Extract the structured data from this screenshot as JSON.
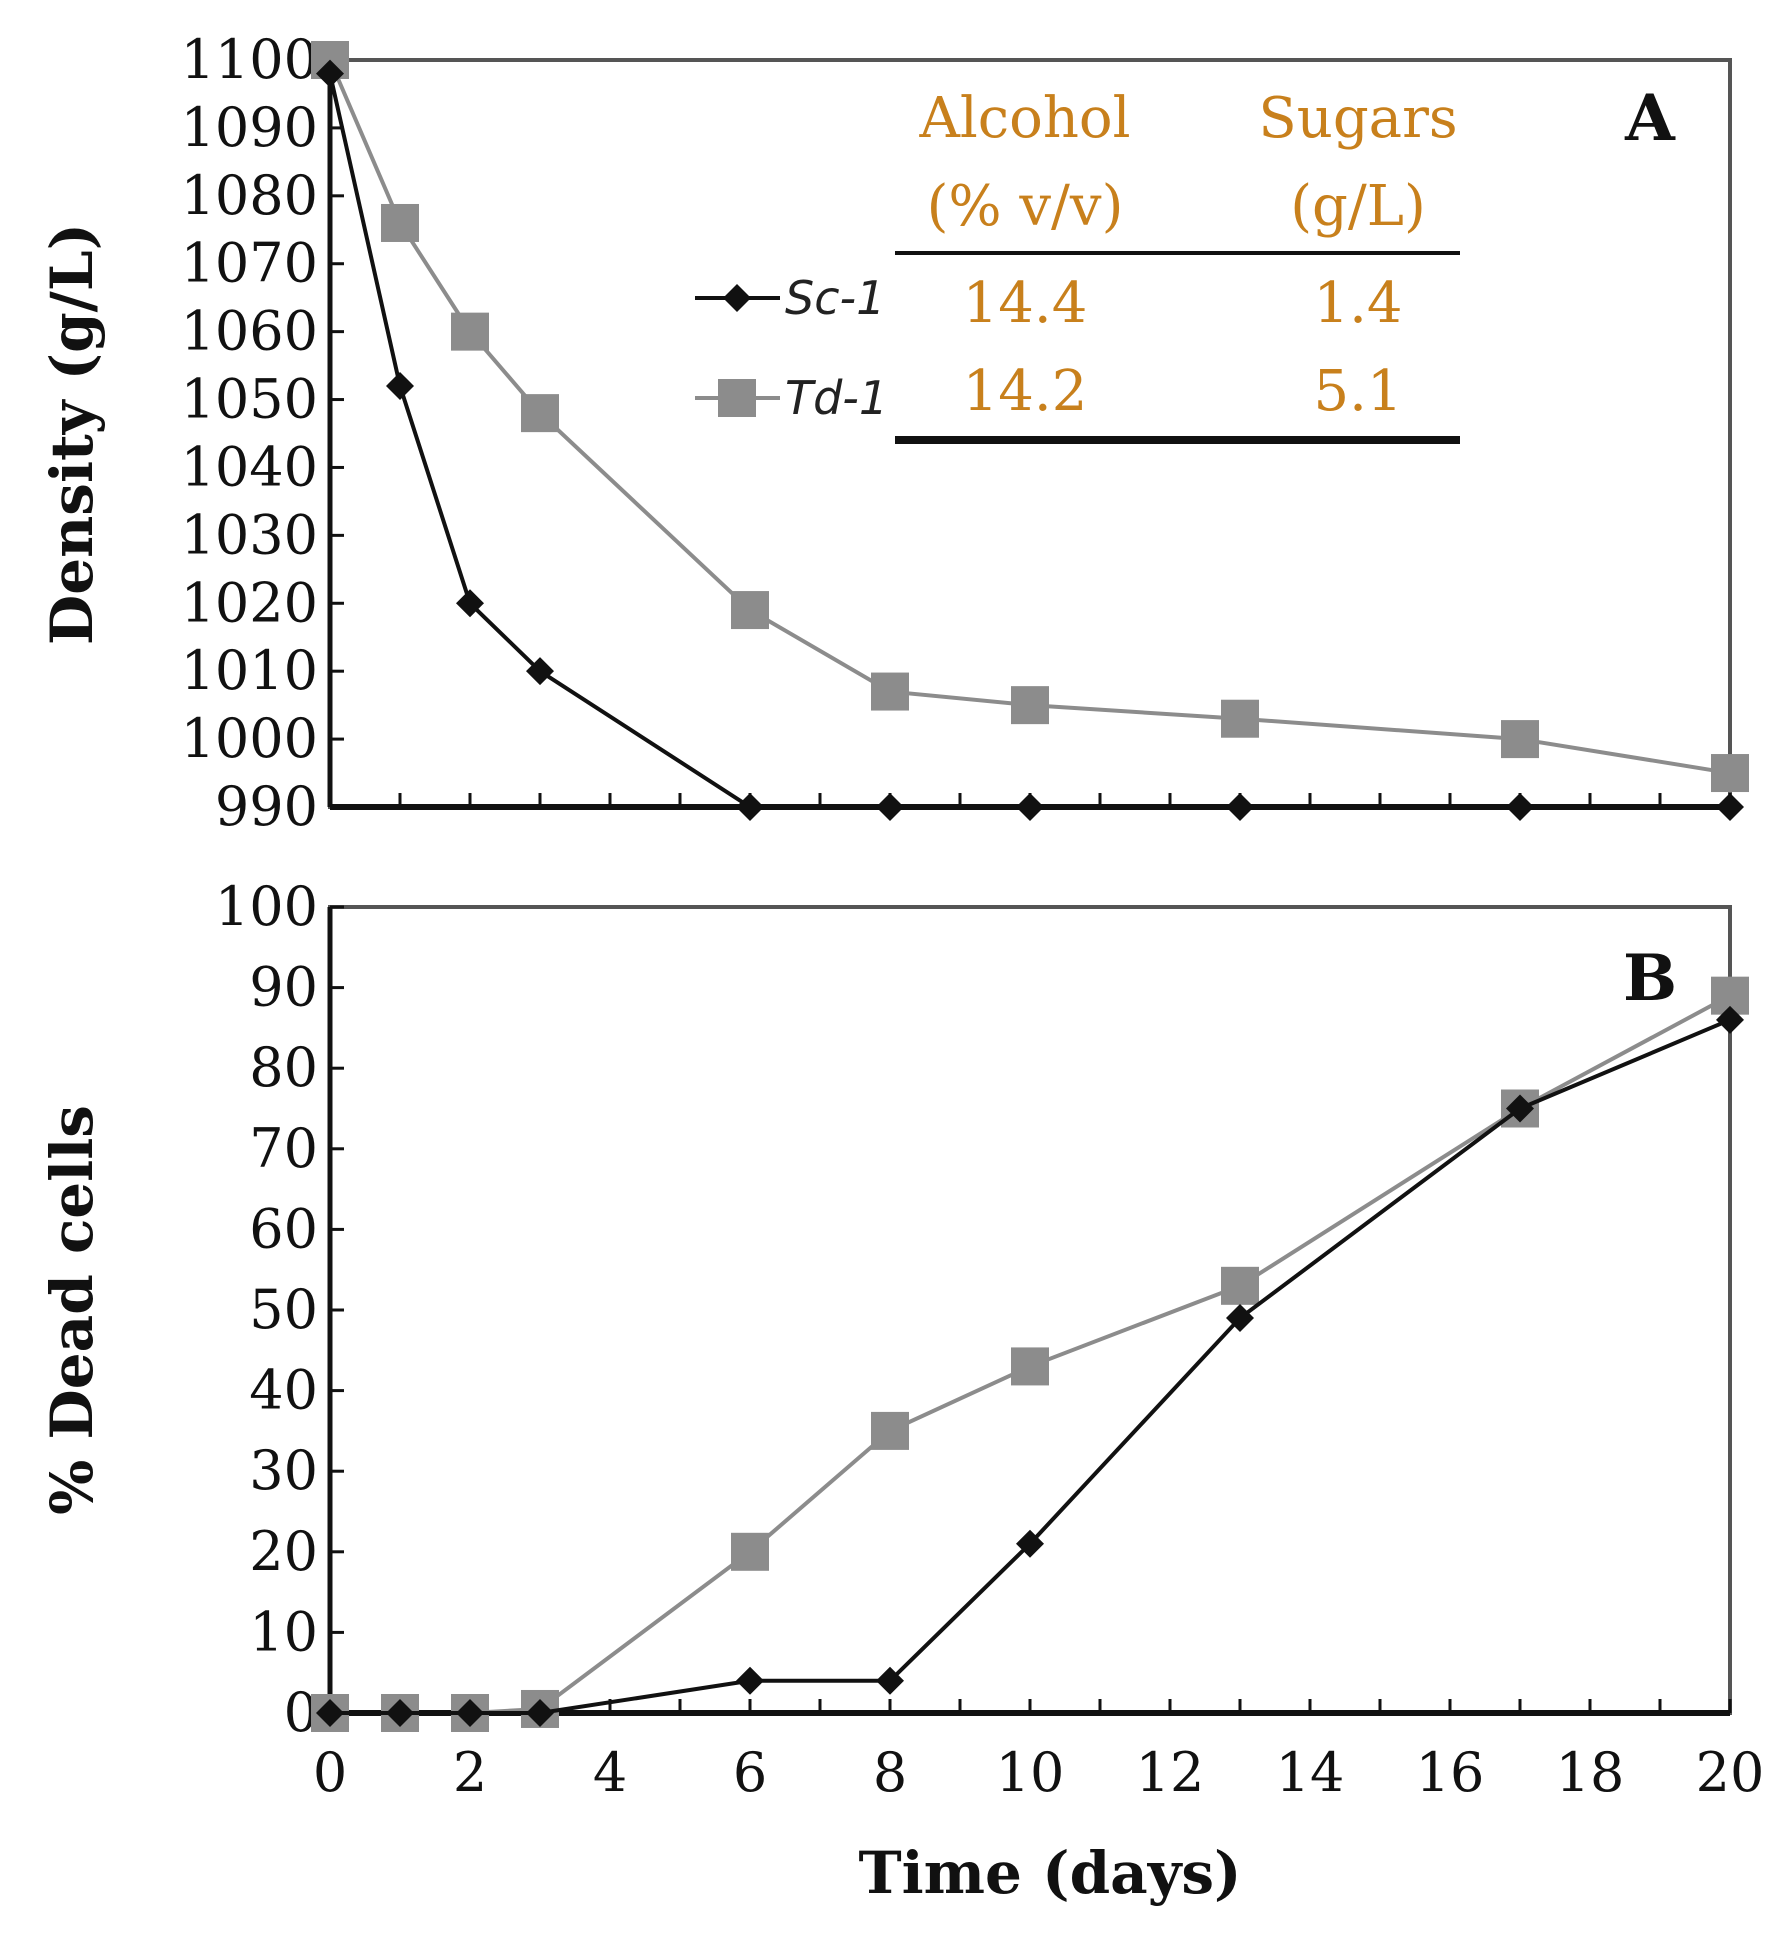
{
  "chart_data": [
    {
      "type": "line",
      "panel": "A",
      "ylabel": "Density (g/L)",
      "xlabel": "",
      "ylim": [
        990,
        1100
      ],
      "yticks": [
        990,
        1000,
        1010,
        1020,
        1030,
        1040,
        1050,
        1060,
        1070,
        1080,
        1090,
        1100
      ],
      "xlim": [
        0,
        20
      ],
      "series": [
        {
          "name": "Sc-1",
          "color": "#111111",
          "marker": "diamond",
          "x": [
            0,
            1,
            2,
            3,
            6,
            8,
            10,
            13,
            17,
            20
          ],
          "y": [
            1098,
            1052,
            1020,
            1010,
            990,
            990,
            990,
            990,
            990,
            990
          ]
        },
        {
          "name": "Td-1",
          "color": "#8c8c8c",
          "marker": "square",
          "x": [
            0,
            1,
            2,
            3,
            6,
            8,
            10,
            13,
            17,
            20
          ],
          "y": [
            1100,
            1076,
            1060,
            1048,
            1019,
            1007,
            1005,
            1003,
            1000,
            995
          ]
        }
      ],
      "table": {
        "columns": [
          {
            "line1": "Alcohol",
            "line2": "(% v/v)"
          },
          {
            "line1": "Sugars",
            "line2": "(g/L)"
          }
        ],
        "rows": [
          {
            "series": "Sc-1",
            "values": [
              "14.4",
              "1.4"
            ]
          },
          {
            "series": "Td-1",
            "values": [
              "14.2",
              "5.1"
            ]
          }
        ]
      }
    },
    {
      "type": "line",
      "panel": "B",
      "ylabel": "% Dead cells",
      "xlabel": "Time (days)",
      "ylim": [
        0,
        100
      ],
      "yticks": [
        0,
        10,
        20,
        30,
        40,
        50,
        60,
        70,
        80,
        90,
        100
      ],
      "xlim": [
        0,
        20
      ],
      "xticks": [
        0,
        2,
        4,
        6,
        8,
        10,
        12,
        14,
        16,
        18,
        20
      ],
      "series": [
        {
          "name": "Sc-1",
          "color": "#111111",
          "marker": "diamond",
          "x": [
            0,
            1,
            2,
            3,
            6,
            8,
            10,
            13,
            17,
            20
          ],
          "y": [
            0,
            0,
            0,
            0,
            4,
            4,
            21,
            49,
            75,
            86
          ]
        },
        {
          "name": "Td-1",
          "color": "#8c8c8c",
          "marker": "square",
          "x": [
            0,
            1,
            2,
            3,
            6,
            8,
            10,
            13,
            17,
            20
          ],
          "y": [
            0,
            0,
            0,
            0.5,
            20,
            35,
            43,
            53,
            75,
            89
          ]
        }
      ]
    }
  ]
}
